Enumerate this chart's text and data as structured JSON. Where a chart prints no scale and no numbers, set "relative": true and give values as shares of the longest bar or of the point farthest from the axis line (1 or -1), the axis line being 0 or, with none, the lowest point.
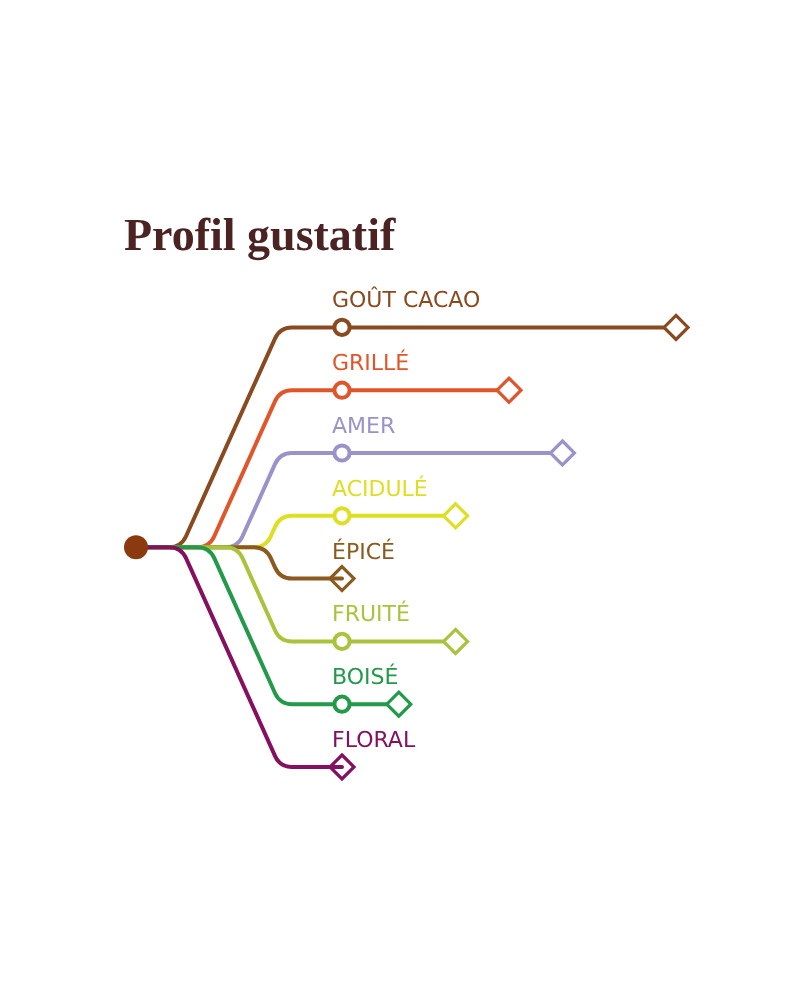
{
  "chart_data": {
    "type": "lollipop",
    "title": "Profil gustatif",
    "orientation": "horizontal",
    "categories": [
      "GOÛT CACAO",
      "GRILLÉ",
      "AMER",
      "ACIDULÉ",
      "ÉPICÉ",
      "FRUITÉ",
      "BOISÉ",
      "FLORAL"
    ],
    "values": [
      1,
      0.5,
      0.66,
      0.34,
      0,
      0.34,
      0.17,
      0
    ],
    "colors": [
      "#8a4a20",
      "#e0552a",
      "#9b92c9",
      "#dede22",
      "#8b5a1e",
      "#a9c43c",
      "#229a4a",
      "#84105f"
    ],
    "relative": true,
    "marker": "diamond"
  }
}
